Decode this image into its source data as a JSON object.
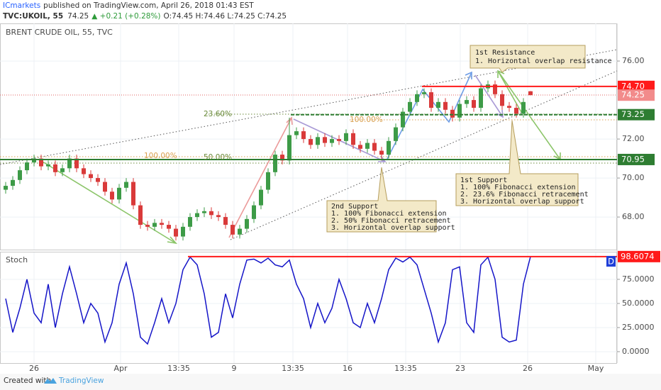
{
  "header": {
    "publisher": "ICmarkets",
    "published": "published on TradingView.com, April 26, 2018 01:43 EST",
    "symbol": "TVC:UKOIL, 55",
    "last": "74.25",
    "change": "▲ +0.21 (+0.28%)",
    "ohlc": "O:74.45 H:74.46 L:74.25 C:74.25"
  },
  "footer": {
    "created": "Created with",
    "brand": "TradingView"
  },
  "chart_data": [
    {
      "type": "candlestick",
      "title": "BRENT CRUDE OIL, 55, TVC",
      "up_color": "#3d9b47",
      "down_color": "#d93a3a",
      "open": [
        69.4,
        69.6,
        69.9,
        70.4,
        70.8,
        71.0,
        70.6,
        70.7,
        70.3,
        70.5,
        71.0,
        70.5,
        70.2,
        70.0,
        69.8,
        69.3,
        68.9,
        69.5,
        69.8,
        68.6,
        67.6,
        67.5,
        67.7,
        67.6,
        67.4,
        67.0,
        67.5,
        68.0,
        68.2,
        68.3,
        68.1,
        68.0,
        67.6,
        67.1,
        67.4,
        67.9,
        68.6,
        69.4,
        70.3,
        71.2,
        70.9,
        72.2,
        72.4,
        72.0,
        71.7,
        72.1,
        71.8,
        72.0,
        71.9,
        72.3,
        71.7,
        71.5,
        71.8,
        71.4,
        71.2,
        71.9,
        72.6,
        73.4,
        73.9,
        74.3,
        74.4,
        73.6,
        73.9,
        73.5,
        73.1,
        73.8,
        74.0,
        73.6,
        74.6,
        74.8,
        74.3,
        73.7,
        73.6,
        73.3,
        74.45
      ],
      "high": [
        69.8,
        70.1,
        70.6,
        71.0,
        71.2,
        71.2,
        70.9,
        70.9,
        70.7,
        71.2,
        71.2,
        70.7,
        70.4,
        70.2,
        70.0,
        69.5,
        69.7,
        70.0,
        70.0,
        68.8,
        67.8,
        67.9,
        67.9,
        67.8,
        67.6,
        67.7,
        68.2,
        68.4,
        68.5,
        68.5,
        68.3,
        68.2,
        67.8,
        67.6,
        68.1,
        68.8,
        69.6,
        70.5,
        71.4,
        71.4,
        73.1,
        72.6,
        72.6,
        72.2,
        72.3,
        72.3,
        72.2,
        72.2,
        72.5,
        72.5,
        71.9,
        72.0,
        72.0,
        71.6,
        72.1,
        72.8,
        73.6,
        74.1,
        74.5,
        74.6,
        74.6,
        74.1,
        74.1,
        73.7,
        74.0,
        74.2,
        74.2,
        74.8,
        75.0,
        75.0,
        74.5,
        73.9,
        73.8,
        74.1,
        74.46
      ],
      "low": [
        69.2,
        69.4,
        69.7,
        70.2,
        70.6,
        70.4,
        70.4,
        70.1,
        70.1,
        70.3,
        70.3,
        70.0,
        69.8,
        69.6,
        69.1,
        68.7,
        68.7,
        69.3,
        68.4,
        67.4,
        67.3,
        67.3,
        67.4,
        67.2,
        66.8,
        66.8,
        67.3,
        67.8,
        68.0,
        67.9,
        67.8,
        67.4,
        66.9,
        66.9,
        67.2,
        67.7,
        68.4,
        69.2,
        70.1,
        70.7,
        70.7,
        72.0,
        71.8,
        71.5,
        71.5,
        71.6,
        71.6,
        71.7,
        71.7,
        71.5,
        71.3,
        71.3,
        71.2,
        70.9,
        71.0,
        71.7,
        72.4,
        73.2,
        73.7,
        74.1,
        73.4,
        73.4,
        73.3,
        72.9,
        72.9,
        73.6,
        73.4,
        73.4,
        74.4,
        74.1,
        73.5,
        73.4,
        73.1,
        73.1,
        74.25
      ],
      "close": [
        69.6,
        69.9,
        70.4,
        70.8,
        71.0,
        70.6,
        70.7,
        70.3,
        70.5,
        71.0,
        70.5,
        70.2,
        70.0,
        69.8,
        69.3,
        68.9,
        69.5,
        69.8,
        68.6,
        67.6,
        67.5,
        67.7,
        67.6,
        67.4,
        67.0,
        67.5,
        68.0,
        68.2,
        68.3,
        68.1,
        68.0,
        67.6,
        67.1,
        67.4,
        67.9,
        68.6,
        69.4,
        70.3,
        71.2,
        70.9,
        72.2,
        72.4,
        72.0,
        71.7,
        72.1,
        71.8,
        72.0,
        71.9,
        72.3,
        71.7,
        71.5,
        71.8,
        71.4,
        71.2,
        71.9,
        72.6,
        73.4,
        73.9,
        74.3,
        74.4,
        73.6,
        73.9,
        73.5,
        73.1,
        73.8,
        74.0,
        73.6,
        74.6,
        74.8,
        74.3,
        73.7,
        73.6,
        73.3,
        73.9,
        74.25
      ],
      "xlim": [
        -0.8,
        86.2
      ],
      "xticks": [
        {
          "value": 4,
          "label": "26"
        },
        {
          "value": 16.2,
          "label": "Apr"
        },
        {
          "value": 24.4,
          "label": "13:35"
        },
        {
          "value": 32.2,
          "label": "9"
        },
        {
          "value": 40.5,
          "label": "13:35"
        },
        {
          "value": 48.2,
          "label": "16"
        },
        {
          "value": 56.4,
          "label": "13:35"
        },
        {
          "value": 64.1,
          "label": "23"
        },
        {
          "value": 73.6,
          "label": "26"
        },
        {
          "value": 83.2,
          "label": "May"
        }
      ],
      "ylim": [
        66.33,
        77.93
      ],
      "yticks": [
        {
          "value": 68,
          "label": "68.00"
        },
        {
          "value": 70,
          "label": "70.00"
        },
        {
          "value": 72,
          "label": "72.00"
        },
        {
          "value": 76,
          "label": "76.00"
        }
      ],
      "grid": true,
      "levels": [
        {
          "value": 74.7,
          "label": "74.70",
          "color": "#ff1a1a"
        },
        {
          "value": 74.25,
          "label": "74.25",
          "color": "#f28b8b"
        },
        {
          "value": 73.25,
          "label": "73.25",
          "color": "#2e7d32"
        },
        {
          "value": 70.95,
          "label": "70.95",
          "color": "#2e7d32"
        }
      ],
      "fib_labels": [
        "23.60%",
        "100.00%",
        "100.00%",
        "50.00%"
      ],
      "annotations": [
        {
          "lines": [
            "1st Resistance",
            "1. Horizontal overlap resistance"
          ]
        },
        {
          "lines": [
            "1st Support",
            "1. 100% Fibonacci extension",
            "2. 23.6% Fibonacci retracement",
            "3. Horizontal overlap support"
          ]
        },
        {
          "lines": [
            "2nd Support",
            "1. 100% Fibonacci extension",
            "2. 50% Fibonacci retracement",
            "3. Horizontal overlap support"
          ]
        }
      ]
    },
    {
      "type": "line",
      "title": "Stoch",
      "color": "#1515c8",
      "badge": "D",
      "values": [
        55,
        20,
        45,
        75,
        40,
        30,
        70,
        25,
        60,
        88,
        60,
        30,
        50,
        40,
        10,
        30,
        70,
        92,
        60,
        15,
        8,
        30,
        55,
        30,
        50,
        85,
        98,
        90,
        60,
        15,
        20,
        60,
        35,
        70,
        95,
        96,
        92,
        97,
        90,
        88,
        95,
        70,
        55,
        25,
        50,
        30,
        45,
        75,
        55,
        30,
        25,
        50,
        30,
        55,
        85,
        97,
        93,
        98,
        90,
        65,
        40,
        10,
        30,
        85,
        88,
        30,
        20,
        90,
        98,
        75,
        15,
        10,
        12,
        70,
        98.6074
      ],
      "ylim": [
        -11.8,
        102.9
      ],
      "yticks": [
        {
          "value": 0,
          "label": "0.0000"
        },
        {
          "value": 25,
          "label": "25.0000"
        },
        {
          "value": 50,
          "label": "50.0000"
        },
        {
          "value": 75,
          "label": "75.0000"
        }
      ],
      "level": {
        "value": 98.6074,
        "label": "98.6074",
        "color": "#ff1a1a"
      }
    }
  ]
}
